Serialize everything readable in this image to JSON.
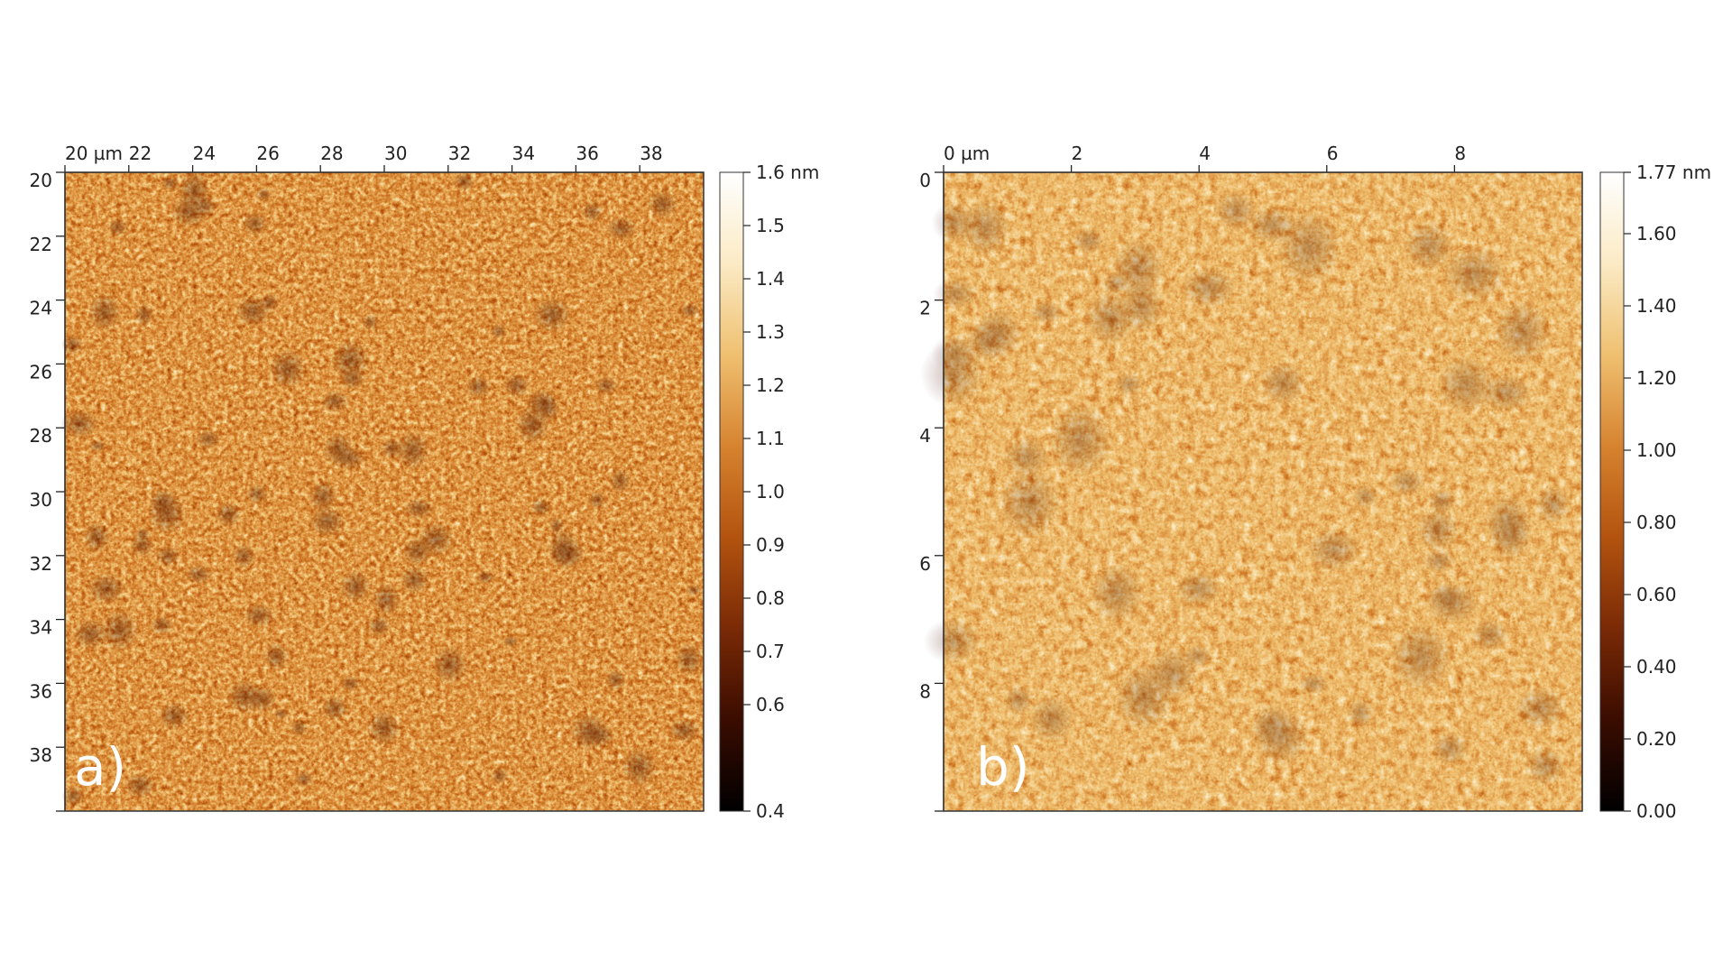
{
  "panels": [
    {
      "panel_label": "a)",
      "x_axis": {
        "ticks": [
          {
            "value": 20,
            "label": "20 µm"
          },
          {
            "value": 22,
            "label": "22"
          },
          {
            "value": 24,
            "label": "24"
          },
          {
            "value": 26,
            "label": "26"
          },
          {
            "value": 28,
            "label": "28"
          },
          {
            "value": 30,
            "label": "30"
          },
          {
            "value": 32,
            "label": "32"
          },
          {
            "value": 34,
            "label": "34"
          },
          {
            "value": 36,
            "label": "36"
          },
          {
            "value": 38,
            "label": "38"
          }
        ],
        "range": [
          20,
          40
        ]
      },
      "y_axis": {
        "ticks": [
          {
            "value": 20,
            "label": "20"
          },
          {
            "value": 22,
            "label": "22"
          },
          {
            "value": 24,
            "label": "24"
          },
          {
            "value": 26,
            "label": "26"
          },
          {
            "value": 28,
            "label": "28"
          },
          {
            "value": 30,
            "label": "30"
          },
          {
            "value": 32,
            "label": "32"
          },
          {
            "value": 34,
            "label": "34"
          },
          {
            "value": 36,
            "label": "36"
          },
          {
            "value": 38,
            "label": "38"
          }
        ],
        "range": [
          20,
          40
        ]
      },
      "colorbar": {
        "range": [
          0.4,
          1.6
        ],
        "ticks": [
          {
            "value": 1.6,
            "label": "1.6 nm"
          },
          {
            "value": 1.5,
            "label": "1.5"
          },
          {
            "value": 1.4,
            "label": "1.4"
          },
          {
            "value": 1.3,
            "label": "1.3"
          },
          {
            "value": 1.2,
            "label": "1.2"
          },
          {
            "value": 1.1,
            "label": "1.1"
          },
          {
            "value": 1.0,
            "label": "1.0"
          },
          {
            "value": 0.9,
            "label": "0.9"
          },
          {
            "value": 0.8,
            "label": "0.8"
          },
          {
            "value": 0.7,
            "label": "0.7"
          },
          {
            "value": 0.6,
            "label": "0.6"
          },
          {
            "value": 0.4,
            "label": "0.4"
          }
        ]
      },
      "texture": {
        "base_level": 0.62,
        "contrast": 0.38,
        "seed": 11,
        "grain_scale": 9,
        "darkspot_density": 0.55
      }
    },
    {
      "panel_label": "b)",
      "x_axis": {
        "ticks": [
          {
            "value": 0,
            "label": "0 µm"
          },
          {
            "value": 2,
            "label": "2"
          },
          {
            "value": 4,
            "label": "4"
          },
          {
            "value": 6,
            "label": "6"
          },
          {
            "value": 8,
            "label": "8"
          }
        ],
        "range": [
          0,
          10
        ]
      },
      "y_axis": {
        "ticks": [
          {
            "value": 0,
            "label": "0"
          },
          {
            "value": 2,
            "label": "2"
          },
          {
            "value": 4,
            "label": "4"
          },
          {
            "value": 6,
            "label": "6"
          },
          {
            "value": 8,
            "label": "8"
          }
        ],
        "range": [
          0,
          10
        ]
      },
      "colorbar": {
        "range": [
          0.0,
          1.77
        ],
        "ticks": [
          {
            "value": 1.77,
            "label": "1.77 nm"
          },
          {
            "value": 1.6,
            "label": "1.60"
          },
          {
            "value": 1.4,
            "label": "1.40"
          },
          {
            "value": 1.2,
            "label": "1.20"
          },
          {
            "value": 1.0,
            "label": "1.00"
          },
          {
            "value": 0.8,
            "label": "0.80"
          },
          {
            "value": 0.6,
            "label": "0.60"
          },
          {
            "value": 0.4,
            "label": "0.40"
          },
          {
            "value": 0.2,
            "label": "0.20"
          },
          {
            "value": 0.0,
            "label": "0.00"
          }
        ]
      },
      "texture": {
        "base_level": 0.7,
        "contrast": 0.28,
        "seed": 47,
        "grain_scale": 14,
        "darkspot_density": 0.35
      }
    }
  ],
  "colormap": [
    "#000000",
    "#3a0c00",
    "#7a2a06",
    "#b3530f",
    "#d6832f",
    "#efc070",
    "#fbeac4",
    "#ffffff"
  ]
}
